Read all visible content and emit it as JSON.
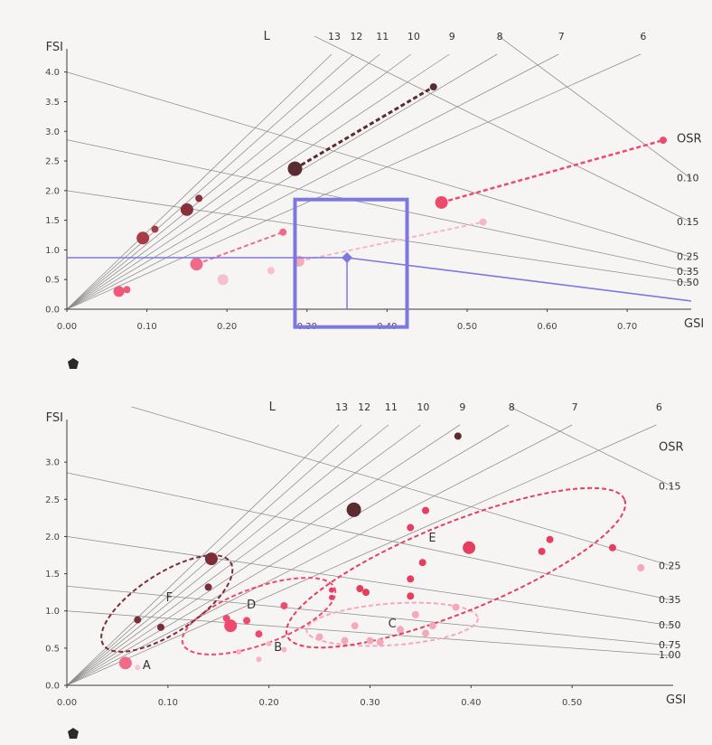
{
  "chart_data": [
    {
      "type": "scatter",
      "xlabel": "GSI",
      "ylabel": "FSI",
      "xlim": [
        0,
        0.78
      ],
      "ylim": [
        0,
        4.3
      ],
      "x_ticks": [
        0,
        0.1,
        0.2,
        0.3,
        0.4,
        0.5,
        0.6,
        0.7
      ],
      "x_tick_labels": [
        "0.00",
        "0.10",
        "0.20",
        "0.30",
        "0.40",
        "0.50",
        "0.60",
        "0.70"
      ],
      "y_ticks": [
        0,
        0.5,
        1.0,
        1.5,
        2.0,
        2.5,
        3.0,
        3.5,
        4.0
      ],
      "y_tick_labels": [
        "0.0",
        "0.5",
        "1.0",
        "1.5",
        "2.0",
        "2.5",
        "3.0",
        "3.5",
        "4.0"
      ],
      "l_title": "L",
      "l_lines": [
        {
          "label": "13",
          "value": 13
        },
        {
          "label": "12",
          "value": 12
        },
        {
          "label": "11",
          "value": 11
        },
        {
          "label": "10",
          "value": 10
        },
        {
          "label": "9",
          "value": 9
        },
        {
          "label": "8",
          "value": 8
        },
        {
          "label": "7",
          "value": 7
        },
        {
          "label": "6",
          "value": 6
        }
      ],
      "osr_title": "OSR",
      "osr_lines": [
        {
          "label": "0.10",
          "value": 0.1
        },
        {
          "label": "0.15",
          "value": 0.15
        },
        {
          "label": "0.25",
          "value": 0.25
        },
        {
          "label": "0.35",
          "value": 0.35
        },
        {
          "label": "0.50",
          "value": 0.5
        }
      ],
      "points": [
        {
          "x": 0.065,
          "y": 0.3,
          "size": 6,
          "color": "#f0597a"
        },
        {
          "x": 0.075,
          "y": 0.33,
          "size": 4,
          "color": "#f0597a"
        },
        {
          "x": 0.095,
          "y": 1.2,
          "size": 7,
          "color": "#a83b48"
        },
        {
          "x": 0.11,
          "y": 1.35,
          "size": 4,
          "color": "#a83b48"
        },
        {
          "x": 0.15,
          "y": 1.68,
          "size": 7,
          "color": "#8a2f3c"
        },
        {
          "x": 0.165,
          "y": 1.87,
          "size": 4,
          "color": "#8a2f3c"
        },
        {
          "x": 0.162,
          "y": 0.76,
          "size": 7,
          "color": "#f06a8a"
        },
        {
          "x": 0.195,
          "y": 0.5,
          "size": 6,
          "color": "#f7c0cb"
        },
        {
          "x": 0.255,
          "y": 0.65,
          "size": 4,
          "color": "#f7c0cb"
        },
        {
          "x": 0.27,
          "y": 1.3,
          "size": 4,
          "color": "#f06a8a"
        },
        {
          "x": 0.29,
          "y": 0.81,
          "size": 6,
          "color": "#f7a9b8"
        },
        {
          "x": 0.285,
          "y": 2.37,
          "size": 8,
          "color": "#5a2b2f"
        },
        {
          "x": 0.458,
          "y": 3.75,
          "size": 4,
          "color": "#5a2b2f"
        },
        {
          "x": 0.468,
          "y": 1.8,
          "size": 7,
          "color": "#ee4a6e"
        },
        {
          "x": 0.52,
          "y": 1.47,
          "size": 4,
          "color": "#f7b6c3"
        },
        {
          "x": 0.745,
          "y": 2.85,
          "size": 4,
          "color": "#ee4a6e"
        }
      ],
      "dashed_links": [
        {
          "from": [
            0.285,
            2.37
          ],
          "to": [
            0.458,
            3.75
          ],
          "color": "#5a2b2f",
          "width": 3
        },
        {
          "from": [
            0.468,
            1.8
          ],
          "to": [
            0.745,
            2.85
          ],
          "color": "#ee4a6e",
          "width": 2.5
        },
        {
          "from": [
            0.162,
            0.76
          ],
          "to": [
            0.27,
            1.3
          ],
          "color": "#f06a8a",
          "width": 2
        },
        {
          "from": [
            0.29,
            0.81
          ],
          "to": [
            0.52,
            1.47
          ],
          "color": "#f7b6c3",
          "width": 2
        }
      ],
      "highlight": {
        "point": {
          "x": 0.35,
          "y": 0.87
        },
        "box": {
          "x": [
            0.285,
            0.425
          ],
          "y": [
            -0.3,
            1.85
          ]
        },
        "color": "#7d78e0"
      }
    },
    {
      "type": "scatter",
      "xlabel": "GSI",
      "ylabel": "FSI",
      "xlim": [
        0,
        0.6
      ],
      "ylim": [
        0,
        3.5
      ],
      "x_ticks": [
        0,
        0.1,
        0.2,
        0.3,
        0.4,
        0.5
      ],
      "x_tick_labels": [
        "0.00",
        "0.10",
        "0.20",
        "0.30",
        "0.40",
        "0.50"
      ],
      "y_ticks": [
        0,
        0.5,
        1.0,
        1.5,
        2.0,
        2.5,
        3.0
      ],
      "y_tick_labels": [
        "0.0",
        "0.5",
        "1.0",
        "1.5",
        "2.0",
        "2.5",
        "3.0"
      ],
      "l_title": "L",
      "l_lines": [
        {
          "label": "13",
          "value": 13
        },
        {
          "label": "12",
          "value": 12
        },
        {
          "label": "11",
          "value": 11
        },
        {
          "label": "10",
          "value": 10
        },
        {
          "label": "9",
          "value": 9
        },
        {
          "label": "8",
          "value": 8
        },
        {
          "label": "7",
          "value": 7
        },
        {
          "label": "6",
          "value": 6
        }
      ],
      "osr_title": "OSR",
      "osr_lines": [
        {
          "label": "0.15",
          "value": 0.15
        },
        {
          "label": "0.25",
          "value": 0.25
        },
        {
          "label": "0.35",
          "value": 0.35
        },
        {
          "label": "0.50",
          "value": 0.5
        },
        {
          "label": "0.75",
          "value": 0.75
        },
        {
          "label": "1.00",
          "value": 1.0
        }
      ],
      "groups": [
        {
          "label": "A",
          "label_pos": [
            0.075,
            0.22
          ],
          "color": "#f7c7d2",
          "ellipse": null
        },
        {
          "label": "B",
          "label_pos": [
            0.205,
            0.46
          ],
          "color": "#f7b3c2",
          "ellipse": null
        },
        {
          "label": "C",
          "label_pos": [
            0.318,
            0.78
          ],
          "color": "#f5a8ba",
          "ellipse": {
            "cx": 0.322,
            "cy": 0.82,
            "rx": 0.085,
            "ry": 0.28,
            "angle": -4
          }
        },
        {
          "label": "D",
          "label_pos": [
            0.178,
            1.03
          ],
          "color": "#ee4a6e",
          "ellipse": {
            "cx": 0.19,
            "cy": 0.93,
            "rx": 0.08,
            "ry": 0.38,
            "angle": -20
          }
        },
        {
          "label": "E",
          "label_pos": [
            0.358,
            1.93
          ],
          "color": "#e63e5f",
          "ellipse": {
            "cx": 0.385,
            "cy": 1.58,
            "rx": 0.18,
            "ry": 0.6,
            "angle": -22
          }
        },
        {
          "label": "F",
          "label_pos": [
            0.098,
            1.13
          ],
          "color": "#7d2d38",
          "ellipse": {
            "cx": 0.099,
            "cy": 1.1,
            "rx": 0.075,
            "ry": 0.4,
            "angle": -33
          }
        }
      ],
      "points": [
        {
          "x": 0.058,
          "y": 0.3,
          "size": 7,
          "color": "#f06a8a"
        },
        {
          "x": 0.07,
          "y": 0.24,
          "size": 3,
          "color": "#f7c7d2"
        },
        {
          "x": 0.07,
          "y": 0.88,
          "size": 4,
          "color": "#7d2d38"
        },
        {
          "x": 0.093,
          "y": 0.78,
          "size": 4,
          "color": "#7d2d38"
        },
        {
          "x": 0.14,
          "y": 1.32,
          "size": 4,
          "color": "#7d2d38"
        },
        {
          "x": 0.143,
          "y": 1.7,
          "size": 7,
          "color": "#7d2d38"
        },
        {
          "x": 0.158,
          "y": 0.9,
          "size": 4,
          "color": "#ee4a6e"
        },
        {
          "x": 0.162,
          "y": 0.8,
          "size": 7,
          "color": "#ee4a6e"
        },
        {
          "x": 0.178,
          "y": 0.87,
          "size": 4,
          "color": "#ee4a6e"
        },
        {
          "x": 0.19,
          "y": 0.69,
          "size": 4,
          "color": "#ee4a6e"
        },
        {
          "x": 0.215,
          "y": 1.07,
          "size": 4,
          "color": "#ee4a6e"
        },
        {
          "x": 0.19,
          "y": 0.35,
          "size": 3,
          "color": "#f7b3c2"
        },
        {
          "x": 0.17,
          "y": 0.45,
          "size": 3,
          "color": "#f7b3c2"
        },
        {
          "x": 0.2,
          "y": 0.56,
          "size": 3,
          "color": "#f7b3c2"
        },
        {
          "x": 0.215,
          "y": 0.48,
          "size": 3,
          "color": "#f7b3c2"
        },
        {
          "x": 0.262,
          "y": 1.28,
          "size": 3,
          "color": "#e63e5f"
        },
        {
          "x": 0.262,
          "y": 1.18,
          "size": 3,
          "color": "#e63e5f"
        },
        {
          "x": 0.284,
          "y": 2.36,
          "size": 8,
          "color": "#5a2b2f"
        },
        {
          "x": 0.29,
          "y": 1.3,
          "size": 4,
          "color": "#e63e5f"
        },
        {
          "x": 0.296,
          "y": 1.25,
          "size": 4,
          "color": "#e63e5f"
        },
        {
          "x": 0.34,
          "y": 2.12,
          "size": 4,
          "color": "#e63e5f"
        },
        {
          "x": 0.34,
          "y": 1.43,
          "size": 4,
          "color": "#e63e5f"
        },
        {
          "x": 0.34,
          "y": 1.2,
          "size": 4,
          "color": "#e63e5f"
        },
        {
          "x": 0.352,
          "y": 1.65,
          "size": 4,
          "color": "#e63e5f"
        },
        {
          "x": 0.355,
          "y": 2.35,
          "size": 4,
          "color": "#e63e5f"
        },
        {
          "x": 0.387,
          "y": 3.35,
          "size": 4,
          "color": "#5a2b2f"
        },
        {
          "x": 0.398,
          "y": 1.85,
          "size": 7,
          "color": "#e63e5f"
        },
        {
          "x": 0.47,
          "y": 1.8,
          "size": 4,
          "color": "#e63e5f"
        },
        {
          "x": 0.478,
          "y": 1.96,
          "size": 4,
          "color": "#e63e5f"
        },
        {
          "x": 0.54,
          "y": 1.85,
          "size": 4,
          "color": "#e63e5f"
        },
        {
          "x": 0.568,
          "y": 1.58,
          "size": 4,
          "color": "#f5a8ba"
        },
        {
          "x": 0.285,
          "y": 0.8,
          "size": 4,
          "color": "#f5a8ba"
        },
        {
          "x": 0.3,
          "y": 0.6,
          "size": 4,
          "color": "#f5a8ba"
        },
        {
          "x": 0.31,
          "y": 0.58,
          "size": 4,
          "color": "#f5a8ba"
        },
        {
          "x": 0.33,
          "y": 0.75,
          "size": 4,
          "color": "#f5a8ba"
        },
        {
          "x": 0.345,
          "y": 0.95,
          "size": 4,
          "color": "#f5a8ba"
        },
        {
          "x": 0.355,
          "y": 0.7,
          "size": 4,
          "color": "#f5a8ba"
        },
        {
          "x": 0.362,
          "y": 0.8,
          "size": 4,
          "color": "#f5a8ba"
        },
        {
          "x": 0.385,
          "y": 1.05,
          "size": 4,
          "color": "#f5a8ba"
        },
        {
          "x": 0.25,
          "y": 0.65,
          "size": 4,
          "color": "#f5a8ba"
        },
        {
          "x": 0.275,
          "y": 0.6,
          "size": 4,
          "color": "#f5a8ba"
        }
      ]
    }
  ]
}
